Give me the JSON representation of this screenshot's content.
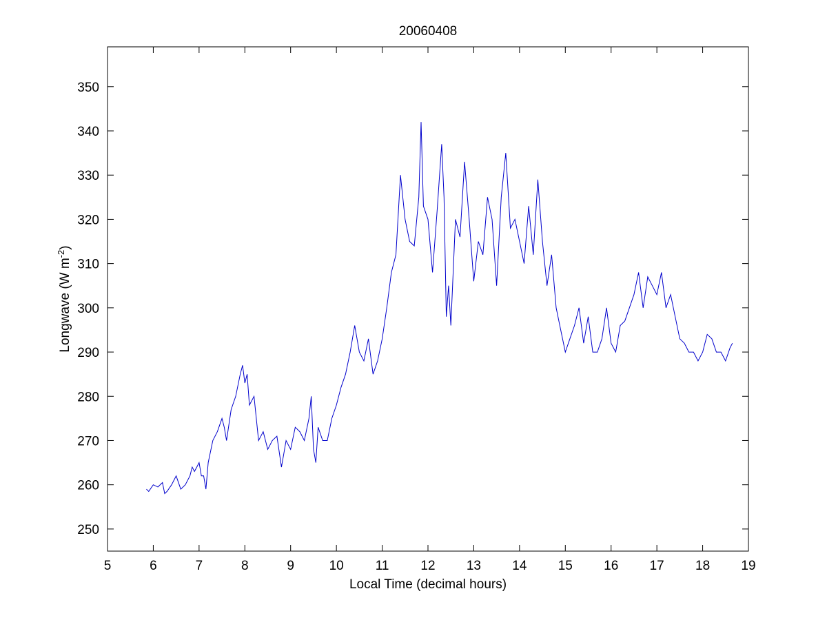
{
  "chart_data": {
    "type": "line",
    "title": "20060408",
    "xlabel": "Local Time (decimal hours)",
    "ylabel_main": "Longwave (W m",
    "ylabel_sup": "-2",
    "ylabel_close": ")",
    "xlim": [
      5,
      19
    ],
    "ylim": [
      245,
      359
    ],
    "xticks": [
      5,
      6,
      7,
      8,
      9,
      10,
      11,
      12,
      13,
      14,
      15,
      16,
      17,
      18,
      19
    ],
    "yticks": [
      250,
      260,
      270,
      280,
      290,
      300,
      310,
      320,
      330,
      340,
      350
    ],
    "grid": false,
    "line_color": "#0000cc",
    "series": [
      {
        "x": [
          5.85,
          5.9,
          6.0,
          6.1,
          6.2,
          6.25,
          6.3,
          6.4,
          6.5,
          6.6,
          6.7,
          6.8,
          6.85,
          6.9,
          7.0,
          7.05,
          7.1,
          7.15,
          7.2,
          7.3,
          7.4,
          7.5,
          7.55,
          7.6,
          7.7,
          7.8,
          7.9,
          7.95,
          8.0,
          8.05,
          8.1,
          8.2,
          8.3,
          8.4,
          8.5,
          8.6,
          8.7,
          8.8,
          8.85,
          8.9,
          9.0,
          9.1,
          9.2,
          9.3,
          9.4,
          9.45,
          9.5,
          9.55,
          9.6,
          9.7,
          9.8,
          9.9,
          10.0,
          10.1,
          10.2,
          10.3,
          10.4,
          10.5,
          10.6,
          10.7,
          10.8,
          10.9,
          11.0,
          11.1,
          11.2,
          11.3,
          11.4,
          11.5,
          11.6,
          11.7,
          11.8,
          11.85,
          11.9,
          12.0,
          12.1,
          12.2,
          12.3,
          12.35,
          12.4,
          12.45,
          12.5,
          12.6,
          12.7,
          12.8,
          12.9,
          13.0,
          13.1,
          13.2,
          13.3,
          13.4,
          13.5,
          13.6,
          13.7,
          13.8,
          13.9,
          14.0,
          14.1,
          14.2,
          14.3,
          14.4,
          14.5,
          14.6,
          14.7,
          14.8,
          14.9,
          15.0,
          15.1,
          15.2,
          15.3,
          15.4,
          15.5,
          15.6,
          15.7,
          15.8,
          15.9,
          16.0,
          16.1,
          16.2,
          16.3,
          16.4,
          16.5,
          16.6,
          16.7,
          16.8,
          16.9,
          17.0,
          17.1,
          17.2,
          17.3,
          17.4,
          17.5,
          17.6,
          17.7,
          17.8,
          17.9,
          18.0,
          18.1,
          18.2,
          18.3,
          18.4,
          18.5,
          18.6,
          18.65
        ],
        "y": [
          259,
          258.5,
          260,
          259.5,
          260.5,
          258,
          258.5,
          260,
          262,
          259,
          260,
          262,
          264,
          263,
          265,
          262,
          262,
          259,
          265,
          270,
          272,
          275,
          273,
          270,
          277,
          280,
          285,
          287,
          283,
          285,
          278,
          280,
          270,
          272,
          268,
          270,
          271,
          264,
          267,
          270,
          268,
          273,
          272,
          270,
          275,
          280,
          268,
          265,
          273,
          270,
          270,
          275,
          278,
          282,
          285,
          290,
          296,
          290,
          288,
          293,
          285,
          288,
          293,
          300,
          308,
          312,
          330,
          320,
          315,
          314,
          325,
          342,
          323,
          320,
          308,
          322,
          337,
          325,
          298,
          305,
          296,
          320,
          316,
          333,
          320,
          306,
          315,
          312,
          325,
          320,
          305,
          325,
          335,
          318,
          320,
          315,
          310,
          323,
          312,
          329,
          315,
          305,
          312,
          300,
          295,
          290,
          293,
          296,
          300,
          292,
          298,
          290,
          290,
          293,
          300,
          292,
          290,
          296,
          297,
          300,
          303,
          308,
          300,
          307,
          305,
          303,
          308,
          300,
          303,
          298,
          293,
          292,
          290,
          290,
          288,
          290,
          294,
          293,
          290,
          290,
          288,
          291,
          292
        ]
      }
    ]
  }
}
